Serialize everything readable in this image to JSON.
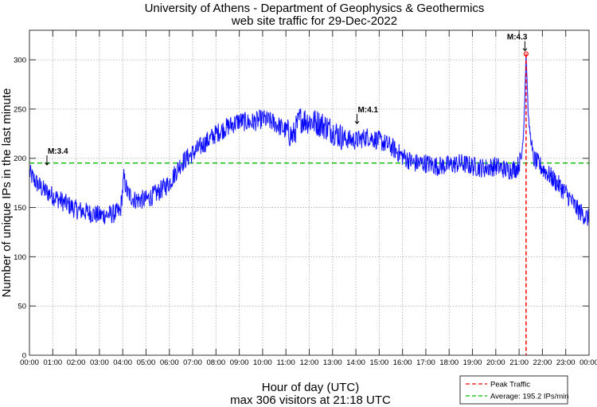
{
  "chart_data": {
    "type": "line",
    "title": "University of Athens - Department of Geophysics & Geothermics",
    "subtitle": "web site traffic for 29-Dec-2022",
    "xlabel": "Hour of day (UTC)",
    "xlabel2": "max 306 visitors at 21:18 UTC",
    "ylabel": "Number of unique IPs in the last minute",
    "xlim": [
      0,
      24
    ],
    "ylim": [
      0,
      330
    ],
    "grid": true,
    "x_tick_labels": [
      "00:00",
      "01:00",
      "02:00",
      "03:00",
      "04:00",
      "05:00",
      "06:00",
      "07:00",
      "08:00",
      "09:00",
      "10:00",
      "11:00",
      "12:00",
      "13:00",
      "14:00",
      "15:00",
      "16:00",
      "17:00",
      "18:00",
      "19:00",
      "20:00",
      "21:00",
      "22:00",
      "23:00",
      "00:00"
    ],
    "y_ticks": [
      0,
      50,
      100,
      150,
      200,
      250,
      300
    ],
    "y_tick_labels": [
      "0",
      "50",
      "100",
      "150",
      "200",
      "250",
      "300"
    ],
    "series": [
      {
        "name": "Traffic",
        "color": "#0000ff",
        "x_hours": [
          0,
          0.3,
          0.6,
          1,
          1.5,
          2,
          2.5,
          3,
          3.5,
          3.9,
          4.05,
          4.2,
          4.5,
          5,
          5.5,
          6,
          6.5,
          7,
          7.5,
          8,
          8.5,
          9,
          9.5,
          10,
          10.5,
          11,
          11.3,
          11.6,
          12,
          12.5,
          13,
          13.5,
          14,
          14.5,
          15,
          15.5,
          16,
          16.5,
          17,
          17.5,
          18,
          18.5,
          19,
          19.5,
          20,
          20.5,
          20.9,
          21.1,
          21.2,
          21.3,
          21.4,
          21.6,
          21.8,
          22,
          22.5,
          23,
          23.5,
          24
        ],
        "values": [
          185,
          175,
          168,
          162,
          155,
          148,
          145,
          142,
          143,
          146,
          180,
          165,
          158,
          158,
          165,
          175,
          195,
          205,
          215,
          225,
          232,
          238,
          236,
          240,
          236,
          228,
          222,
          240,
          238,
          235,
          228,
          220,
          218,
          222,
          218,
          212,
          202,
          195,
          195,
          192,
          193,
          195,
          192,
          190,
          192,
          188,
          190,
          200,
          230,
          306,
          240,
          200,
          195,
          190,
          178,
          165,
          148,
          138
        ]
      }
    ],
    "annotations": [
      {
        "text": "M:3.4",
        "x_hour": 0.75,
        "value": 190
      },
      {
        "text": "M:4.1",
        "x_hour": 14.05,
        "value": 232
      },
      {
        "text": "M:4.3",
        "x_hour": 21.25,
        "value": 306
      }
    ],
    "peak": {
      "x_hour": 21.3,
      "value": 306,
      "color": "#ff0000"
    },
    "average": {
      "value": 195.2,
      "color": "#00bb00"
    },
    "legend": {
      "position": "bottom-right",
      "entries": [
        {
          "label": "Peak Traffic",
          "color": "#ff0000"
        },
        {
          "label": "Average: 195.2 IPs/min",
          "color": "#00bb00"
        }
      ]
    }
  }
}
